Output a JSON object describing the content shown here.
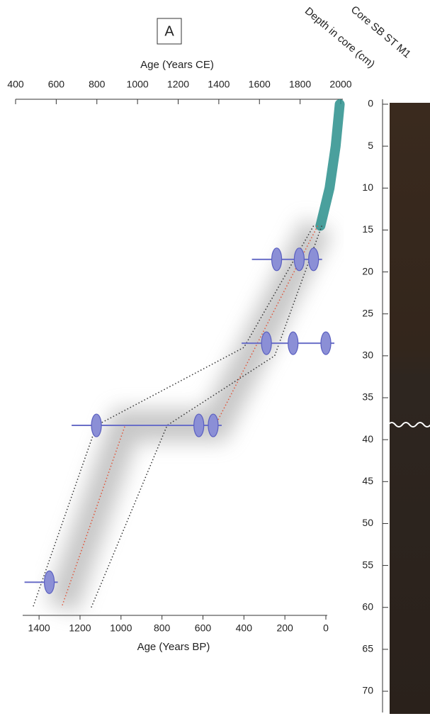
{
  "chart_data": {
    "type": "agedepth",
    "panel_label": "A",
    "core_label": "Core SB ST M1",
    "y_label": "Depth in core (cm)",
    "x_label_top": "Age (Years CE)",
    "x_label_bottom": "Age (Years BP)",
    "xlim_top": [
      400,
      2000
    ],
    "xticks_top": [
      400,
      600,
      800,
      1000,
      1200,
      1400,
      1600,
      1800,
      2000
    ],
    "xlim_bottom": [
      1480,
      0
    ],
    "xticks_bottom": [
      1400,
      1200,
      1000,
      800,
      600,
      400,
      200,
      0
    ],
    "ylim": [
      0,
      72.5
    ],
    "yticks": [
      0,
      5,
      10,
      15,
      20,
      25,
      30,
      35,
      40,
      45,
      50,
      55,
      60,
      65,
      70
    ],
    "model": {
      "median": {
        "color": "#e0553a",
        "depth": [
          14.5,
          38.3,
          38.3,
          60
        ],
        "age_bp": [
          40,
          540,
          980,
          1290
        ]
      },
      "lower": {
        "color": "#333333",
        "depth": [
          14.5,
          29,
          38.3,
          60
        ],
        "age_bp": [
          60,
          400,
          1120,
          1430
        ]
      },
      "upper": {
        "color": "#333333",
        "depth": [
          14.5,
          30,
          38.3,
          60
        ],
        "age_bp": [
          20,
          250,
          775,
          1145
        ]
      }
    },
    "pb210": {
      "color": "#2a8f8c",
      "depth": [
        0,
        5,
        10,
        14.5
      ],
      "age_ce": [
        1995,
        1975,
        1945,
        1900
      ]
    },
    "dates": {
      "color": "#8b8fd6",
      "depth": [
        18.5,
        18.5,
        18.5,
        28.5,
        28.5,
        28.5,
        38.3,
        38.3,
        38.3,
        57
      ],
      "age_bp": [
        240,
        130,
        60,
        290,
        160,
        0,
        1120,
        620,
        550,
        1350
      ]
    }
  }
}
